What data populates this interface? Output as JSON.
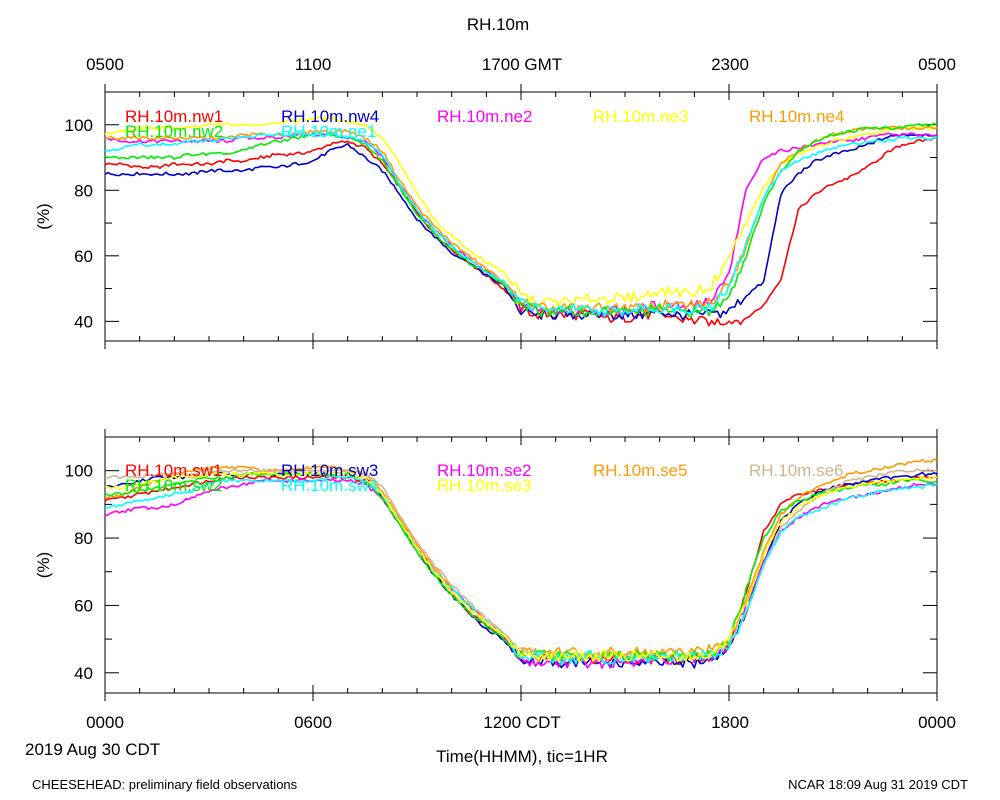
{
  "figure": {
    "title": "RH.10m",
    "top_axis_ticks": [
      "0500",
      "1100",
      "1700 GMT",
      "2300",
      "0500"
    ],
    "bottom_axis_ticks": [
      "0000",
      "0600",
      "1200 CDT",
      "1800",
      "0000"
    ],
    "date_label": "2019 Aug 30 CDT",
    "x_axis_label": "Time(HHMM), tic=1HR",
    "footer_left": "CHEESEHEAD: preliminary field observations",
    "footer_right": "NCAR 18:09 Aug 31 2019 CDT"
  },
  "chart_data": [
    {
      "type": "line",
      "title": "RH.10m",
      "xlabel": "Time(HHMM), tic=1HR",
      "ylabel": "(%)",
      "xlim": [
        0,
        24
      ],
      "ylim": [
        34,
        110
      ],
      "yticks": [
        40,
        60,
        80,
        100
      ],
      "x": [
        0,
        0.5,
        1,
        1.5,
        2,
        2.5,
        3,
        3.5,
        4,
        4.5,
        5,
        5.5,
        6,
        6.5,
        7,
        7.5,
        8,
        8.5,
        9,
        9.5,
        10,
        10.5,
        11,
        11.5,
        12,
        12.5,
        13,
        13.5,
        14,
        14.5,
        15,
        15.5,
        16,
        16.5,
        17,
        17.5,
        18,
        18.5,
        19,
        19.5,
        20,
        20.5,
        21,
        21.5,
        22,
        22.5,
        23,
        23.5,
        24
      ],
      "series": [
        {
          "name": "RH.10m.nw1",
          "color": "#ff0000",
          "values": [
            88,
            88,
            87,
            87,
            88,
            88,
            88,
            89,
            89,
            90,
            91,
            91,
            92,
            94,
            95,
            93,
            88,
            81,
            73,
            67,
            62,
            58,
            54,
            50,
            44,
            42,
            42,
            42,
            42,
            41,
            41,
            42,
            42,
            41,
            40,
            40,
            40,
            41,
            45,
            53,
            74,
            79,
            82,
            84,
            87,
            91,
            94,
            95,
            96
          ]
        },
        {
          "name": "RH.10m.nw4",
          "color": "#0000cc",
          "values": [
            85,
            85,
            85,
            85,
            85,
            85,
            86,
            86,
            86,
            87,
            87,
            88,
            89,
            92,
            94,
            90,
            86,
            79,
            71,
            66,
            61,
            58,
            54,
            51,
            43,
            42,
            42,
            42,
            42,
            42,
            42,
            42,
            43,
            42,
            42,
            42,
            43,
            48,
            52,
            79,
            85,
            89,
            91,
            92,
            94,
            96,
            97,
            97,
            97
          ]
        },
        {
          "name": "RH.10m.ne2",
          "color": "#ff00ff",
          "values": [
            96,
            95,
            95,
            95,
            95,
            95,
            95,
            95,
            96,
            96,
            96,
            97,
            97,
            97,
            96,
            95,
            90,
            82,
            74,
            68,
            63,
            59,
            55,
            52,
            45,
            43,
            43,
            43,
            43,
            43,
            43,
            44,
            45,
            45,
            45,
            46,
            54,
            80,
            90,
            92,
            93,
            94,
            95,
            95,
            96,
            97,
            97,
            97,
            97
          ]
        },
        {
          "name": "RH.10m.ne3",
          "color": "#ffff00",
          "values": [
            97,
            98,
            99,
            99,
            99,
            99,
            100,
            100,
            100,
            100,
            101,
            101,
            102,
            102,
            101,
            100,
            96,
            88,
            79,
            71,
            66,
            62,
            58,
            55,
            48,
            46,
            46,
            46,
            47,
            47,
            47,
            48,
            49,
            49,
            49,
            51,
            60,
            70,
            81,
            88,
            91,
            93,
            95,
            96,
            97,
            98,
            99,
            99,
            99
          ]
        },
        {
          "name": "RH.10m.ne4",
          "color": "#ff9900",
          "values": [
            96,
            96,
            96,
            96,
            96,
            96,
            96,
            96,
            97,
            97,
            97,
            97,
            98,
            98,
            98,
            96,
            92,
            83,
            75,
            69,
            64,
            60,
            56,
            52,
            46,
            44,
            44,
            44,
            44,
            44,
            44,
            44,
            45,
            45,
            45,
            46,
            52,
            63,
            78,
            88,
            92,
            95,
            97,
            98,
            99,
            99,
            99,
            99,
            99
          ]
        },
        {
          "name": "RH.10m.nw2",
          "color": "#00ee00",
          "values": [
            90,
            90,
            90,
            90,
            90,
            91,
            91,
            91,
            92,
            94,
            95,
            96,
            97,
            97,
            96,
            94,
            89,
            81,
            73,
            67,
            62,
            58,
            55,
            51,
            45,
            43,
            43,
            43,
            43,
            43,
            43,
            43,
            44,
            43,
            43,
            43,
            48,
            60,
            76,
            86,
            92,
            95,
            97,
            98,
            99,
            99,
            99,
            100,
            100
          ]
        },
        {
          "name": "RH.10m.ne1",
          "color": "#00ffff",
          "values": [
            92,
            93,
            94,
            94,
            94,
            95,
            95,
            96,
            96,
            97,
            97,
            97,
            97,
            97,
            96,
            95,
            91,
            82,
            74,
            68,
            63,
            59,
            55,
            52,
            46,
            44,
            43,
            44,
            43,
            43,
            43,
            44,
            44,
            44,
            44,
            45,
            50,
            64,
            78,
            86,
            89,
            91,
            93,
            94,
            95,
            95,
            96,
            96,
            96
          ]
        }
      ]
    },
    {
      "type": "line",
      "title": "RH.10m",
      "xlabel": "Time(HHMM), tic=1HR",
      "ylabel": "(%)",
      "xlim": [
        0,
        24
      ],
      "ylim": [
        34,
        110
      ],
      "yticks": [
        40,
        60,
        80,
        100
      ],
      "x": [
        0,
        0.5,
        1,
        1.5,
        2,
        2.5,
        3,
        3.5,
        4,
        4.5,
        5,
        5.5,
        6,
        6.5,
        7,
        7.5,
        8,
        8.5,
        9,
        9.5,
        10,
        10.5,
        11,
        11.5,
        12,
        12.5,
        13,
        13.5,
        14,
        14.5,
        15,
        15.5,
        16,
        16.5,
        17,
        17.5,
        18,
        18.5,
        19,
        19.5,
        20,
        20.5,
        21,
        21.5,
        22,
        22.5,
        23,
        23.5,
        24
      ],
      "series": [
        {
          "name": "RH.10m.sw1",
          "color": "#ff0000",
          "values": [
            91,
            92,
            93,
            94,
            95,
            96,
            97,
            98,
            98,
            98,
            98,
            98,
            98,
            98,
            98,
            97,
            92,
            85,
            77,
            70,
            64,
            58,
            54,
            50,
            44,
            44,
            44,
            44,
            44,
            44,
            44,
            44,
            44,
            44,
            44,
            44,
            48,
            64,
            82,
            90,
            93,
            94,
            95,
            96,
            96,
            97,
            97,
            98,
            98
          ]
        },
        {
          "name": "RH.10m.sw3",
          "color": "#0000cc",
          "values": [
            95,
            96,
            97,
            98,
            98,
            98,
            99,
            99,
            99,
            99,
            99,
            99,
            99,
            99,
            99,
            98,
            92,
            84,
            76,
            69,
            63,
            58,
            53,
            50,
            43,
            43,
            43,
            43,
            43,
            43,
            43,
            43,
            43,
            43,
            43,
            44,
            47,
            58,
            73,
            85,
            90,
            93,
            95,
            96,
            97,
            98,
            98,
            99,
            99
          ]
        },
        {
          "name": "RH.10m.se2",
          "color": "#ff00ff",
          "values": [
            87,
            88,
            89,
            89,
            90,
            92,
            94,
            95,
            96,
            97,
            97,
            97,
            97,
            97,
            97,
            96,
            92,
            85,
            77,
            70,
            65,
            60,
            55,
            51,
            44,
            43,
            43,
            43,
            43,
            43,
            43,
            43,
            44,
            44,
            44,
            45,
            48,
            60,
            73,
            82,
            86,
            89,
            91,
            92,
            93,
            94,
            95,
            96,
            96
          ]
        },
        {
          "name": "RH.10m.se5",
          "color": "#ff9900",
          "values": [
            92,
            93,
            95,
            97,
            99,
            100,
            101,
            101,
            101,
            100,
            100,
            100,
            101,
            101,
            100,
            99,
            94,
            86,
            78,
            71,
            65,
            60,
            55,
            51,
            46,
            46,
            46,
            46,
            46,
            46,
            46,
            46,
            46,
            46,
            46,
            47,
            51,
            62,
            76,
            87,
            92,
            95,
            97,
            99,
            100,
            101,
            102,
            103,
            103
          ]
        },
        {
          "name": "RH.10m.se6",
          "color": "#d2b48c",
          "values": [
            98,
            98,
            98,
            99,
            99,
            99,
            100,
            100,
            100,
            100,
            100,
            100,
            100,
            100,
            100,
            99,
            95,
            87,
            79,
            72,
            66,
            61,
            56,
            52,
            46,
            45,
            45,
            45,
            45,
            45,
            45,
            45,
            45,
            45,
            45,
            46,
            49,
            58,
            72,
            83,
            88,
            92,
            95,
            97,
            98,
            99,
            100,
            100,
            100
          ]
        },
        {
          "name": "RH.10m.sw2",
          "color": "#00ee00",
          "values": [
            93,
            93,
            94,
            95,
            96,
            97,
            98,
            98,
            99,
            99,
            99,
            99,
            99,
            99,
            99,
            97,
            92,
            84,
            76,
            69,
            63,
            58,
            54,
            50,
            45,
            45,
            45,
            45,
            45,
            45,
            45,
            45,
            45,
            45,
            45,
            46,
            50,
            65,
            80,
            88,
            91,
            93,
            94,
            95,
            96,
            96,
            97,
            97,
            97
          ]
        },
        {
          "name": "RH.10m.sw4",
          "color": "#00ffff",
          "values": [
            89,
            90,
            91,
            92,
            93,
            94,
            96,
            97,
            97,
            97,
            97,
            97,
            97,
            98,
            98,
            97,
            93,
            85,
            77,
            70,
            65,
            60,
            55,
            51,
            45,
            45,
            44,
            44,
            45,
            44,
            44,
            44,
            45,
            45,
            45,
            45,
            48,
            58,
            72,
            82,
            86,
            88,
            90,
            92,
            93,
            94,
            95,
            95,
            96
          ]
        },
        {
          "name": "RH.10m.se3",
          "color": "#ffff00",
          "values": [
            95,
            95,
            96,
            97,
            98,
            98,
            99,
            99,
            99,
            99,
            99,
            99,
            99,
            99,
            99,
            98,
            93,
            85,
            77,
            70,
            64,
            59,
            55,
            51,
            45,
            45,
            45,
            45,
            45,
            45,
            45,
            45,
            45,
            45,
            45,
            46,
            49,
            60,
            75,
            85,
            89,
            92,
            94,
            95,
            96,
            97,
            97,
            98,
            98
          ]
        }
      ]
    }
  ]
}
